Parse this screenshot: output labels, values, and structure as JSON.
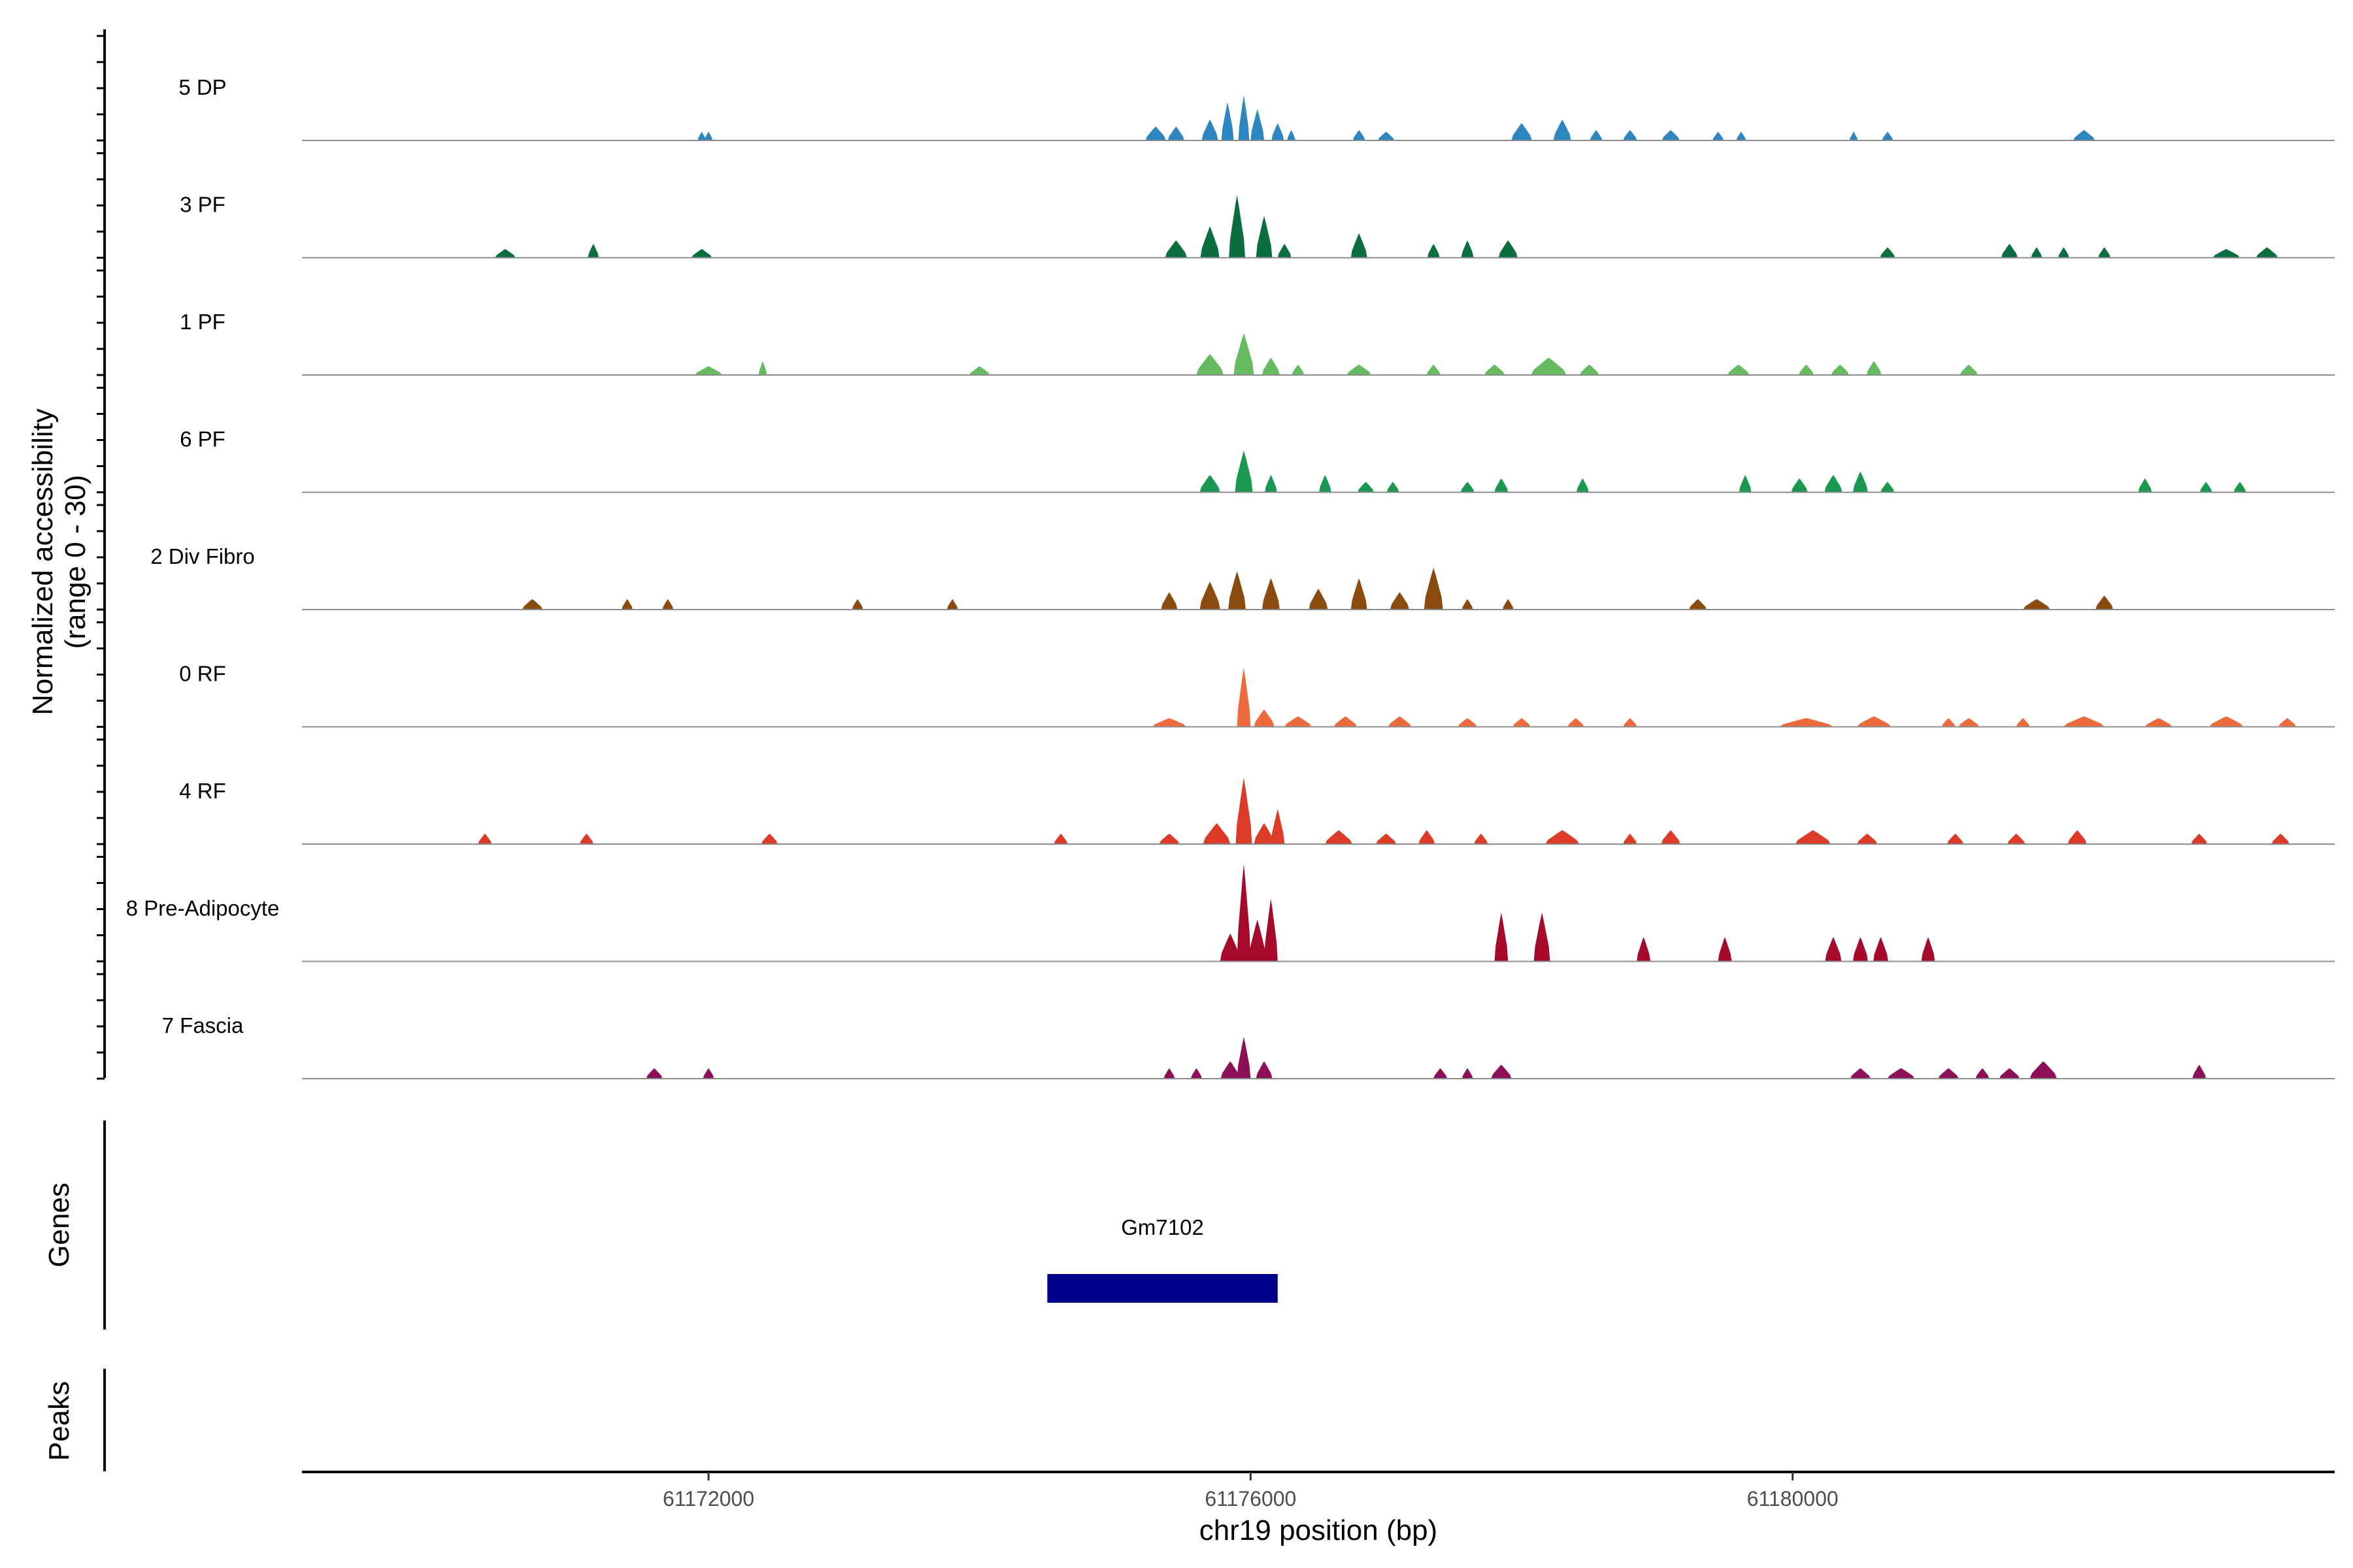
{
  "chart_data": {
    "type": "area",
    "title": "",
    "ylabel_line1": "Normalized accessibility",
    "ylabel_line2": "(range 0 - 30)",
    "xlabel": "chr19 position (bp)",
    "xlim": [
      61169000,
      61184000
    ],
    "ylim": [
      0,
      30
    ],
    "x_ticks": [
      61172000,
      61176000,
      61180000
    ],
    "x_tick_labels": [
      "61172000",
      "61176000",
      "61180000"
    ],
    "series": [
      {
        "name": "5 DP",
        "color": "#2E86C1",
        "peaks": [
          [
            61171950,
            60,
            2.5
          ],
          [
            61172000,
            60,
            2.5
          ],
          [
            61175300,
            150,
            4
          ],
          [
            61175450,
            120,
            4
          ],
          [
            61175700,
            120,
            6
          ],
          [
            61175830,
            90,
            11
          ],
          [
            61175950,
            80,
            13
          ],
          [
            61176050,
            100,
            9
          ],
          [
            61176200,
            90,
            5
          ],
          [
            61176300,
            60,
            3
          ],
          [
            61176800,
            90,
            3
          ],
          [
            61177000,
            120,
            2.5
          ],
          [
            61178000,
            150,
            5
          ],
          [
            61178300,
            130,
            6
          ],
          [
            61178550,
            90,
            3
          ],
          [
            61178800,
            100,
            3
          ],
          [
            61179100,
            130,
            3
          ],
          [
            61179450,
            80,
            2.5
          ],
          [
            61179620,
            70,
            2.5
          ],
          [
            61180450,
            60,
            2.5
          ],
          [
            61180700,
            80,
            2.5
          ],
          [
            61182150,
            160,
            3
          ]
        ]
      },
      {
        "name": "3 PF",
        "color": "#0A6E3F",
        "peaks": [
          [
            61170500,
            150,
            2.5
          ],
          [
            61171150,
            80,
            4
          ],
          [
            61171950,
            150,
            2.5
          ],
          [
            61175450,
            160,
            5
          ],
          [
            61175700,
            140,
            9
          ],
          [
            61175900,
            120,
            18
          ],
          [
            61176100,
            120,
            12
          ],
          [
            61176250,
            100,
            4
          ],
          [
            61176800,
            120,
            7
          ],
          [
            61177350,
            90,
            4
          ],
          [
            61177600,
            90,
            5
          ],
          [
            61177900,
            140,
            5
          ],
          [
            61180700,
            110,
            3
          ],
          [
            61181600,
            120,
            4
          ],
          [
            61181800,
            80,
            3
          ],
          [
            61182000,
            80,
            3
          ],
          [
            61182300,
            90,
            3
          ],
          [
            61183200,
            200,
            2.5
          ],
          [
            61183500,
            160,
            3
          ]
        ]
      },
      {
        "name": "1 PF",
        "color": "#66BB60",
        "peaks": [
          [
            61172000,
            200,
            2.5
          ],
          [
            61172400,
            60,
            4
          ],
          [
            61174000,
            150,
            2.5
          ],
          [
            61175700,
            200,
            6
          ],
          [
            61175950,
            150,
            12
          ],
          [
            61176150,
            130,
            5
          ],
          [
            61176350,
            90,
            3
          ],
          [
            61176800,
            180,
            3
          ],
          [
            61177350,
            100,
            3
          ],
          [
            61177800,
            150,
            3
          ],
          [
            61178200,
            260,
            5
          ],
          [
            61178500,
            140,
            3
          ],
          [
            61179600,
            160,
            3
          ],
          [
            61180100,
            110,
            3
          ],
          [
            61180350,
            130,
            3
          ],
          [
            61180600,
            110,
            4
          ],
          [
            61181300,
            130,
            3
          ]
        ]
      },
      {
        "name": "6 PF",
        "color": "#1A9850",
        "peaks": [
          [
            61175700,
            150,
            5
          ],
          [
            61175950,
            130,
            12
          ],
          [
            61176150,
            90,
            5
          ],
          [
            61176550,
            90,
            5
          ],
          [
            61176850,
            120,
            3
          ],
          [
            61177050,
            90,
            3
          ],
          [
            61177600,
            100,
            3
          ],
          [
            61177850,
            100,
            4
          ],
          [
            61178450,
            90,
            4
          ],
          [
            61179650,
            90,
            5
          ],
          [
            61180050,
            120,
            4
          ],
          [
            61180300,
            130,
            5
          ],
          [
            61180500,
            110,
            6
          ],
          [
            61180700,
            100,
            3
          ],
          [
            61182600,
            100,
            4
          ],
          [
            61183050,
            90,
            3
          ],
          [
            61183300,
            90,
            3
          ]
        ]
      },
      {
        "name": "2 Div Fibro",
        "color": "#8A4B0E",
        "peaks": [
          [
            61170700,
            150,
            3
          ],
          [
            61171400,
            80,
            3
          ],
          [
            61171700,
            80,
            3
          ],
          [
            61173100,
            80,
            3
          ],
          [
            61173800,
            80,
            3
          ],
          [
            61175400,
            120,
            5
          ],
          [
            61175700,
            150,
            8
          ],
          [
            61175900,
            130,
            11
          ],
          [
            61176150,
            130,
            9
          ],
          [
            61176500,
            140,
            6
          ],
          [
            61176800,
            120,
            9
          ],
          [
            61177100,
            140,
            5
          ],
          [
            61177350,
            140,
            12
          ],
          [
            61177600,
            80,
            3
          ],
          [
            61177900,
            80,
            3
          ],
          [
            61179300,
            130,
            3
          ],
          [
            61181800,
            200,
            3
          ],
          [
            61182300,
            130,
            4
          ]
        ]
      },
      {
        "name": "0 RF",
        "color": "#EC6A3C",
        "peaks": [
          [
            61175400,
            250,
            2.5
          ],
          [
            61175950,
            100,
            17
          ],
          [
            61176100,
            150,
            5
          ],
          [
            61176350,
            200,
            3
          ],
          [
            61176700,
            170,
            3
          ],
          [
            61177100,
            170,
            3
          ],
          [
            61177600,
            140,
            2.5
          ],
          [
            61178000,
            130,
            2.5
          ],
          [
            61178400,
            120,
            2.5
          ],
          [
            61178800,
            100,
            2.5
          ],
          [
            61180100,
            400,
            2.5
          ],
          [
            61180600,
            250,
            3
          ],
          [
            61181150,
            100,
            2.5
          ],
          [
            61181300,
            150,
            2.5
          ],
          [
            61181700,
            100,
            2.5
          ],
          [
            61182150,
            300,
            3
          ],
          [
            61182700,
            200,
            2.5
          ],
          [
            61183200,
            250,
            3
          ],
          [
            61183650,
            130,
            2.5
          ]
        ]
      },
      {
        "name": "4 RF",
        "color": "#DC3B27",
        "peaks": [
          [
            61170350,
            100,
            3
          ],
          [
            61171100,
            100,
            3
          ],
          [
            61172450,
            120,
            3
          ],
          [
            61174600,
            100,
            3
          ],
          [
            61175400,
            150,
            3
          ],
          [
            61175750,
            200,
            6
          ],
          [
            61175950,
            120,
            19
          ],
          [
            61176100,
            150,
            6
          ],
          [
            61176200,
            100,
            10
          ],
          [
            61176650,
            200,
            4
          ],
          [
            61177000,
            150,
            3
          ],
          [
            61177300,
            120,
            4
          ],
          [
            61177700,
            100,
            3
          ],
          [
            61178300,
            250,
            4
          ],
          [
            61178800,
            100,
            3
          ],
          [
            61179100,
            140,
            4
          ],
          [
            61180150,
            260,
            4
          ],
          [
            61180550,
            150,
            3
          ],
          [
            61181200,
            120,
            3
          ],
          [
            61181650,
            130,
            3
          ],
          [
            61182100,
            140,
            4
          ],
          [
            61183000,
            120,
            3
          ],
          [
            61183600,
            130,
            3
          ]
        ]
      },
      {
        "name": "8 Pre-Adipocyte",
        "color": "#A50A2B",
        "peaks": [
          [
            61175850,
            150,
            8
          ],
          [
            61175950,
            100,
            28
          ],
          [
            61176050,
            130,
            12
          ],
          [
            61176150,
            100,
            18
          ],
          [
            61177850,
            100,
            14
          ],
          [
            61178150,
            120,
            14
          ],
          [
            61178900,
            100,
            7
          ],
          [
            61179500,
            100,
            7
          ],
          [
            61180300,
            120,
            7
          ],
          [
            61180500,
            110,
            7
          ],
          [
            61180650,
            110,
            7
          ],
          [
            61181000,
            100,
            7
          ]
        ]
      },
      {
        "name": "7 Fascia",
        "color": "#8C0F57",
        "peaks": [
          [
            61171600,
            120,
            3
          ],
          [
            61172000,
            80,
            3
          ],
          [
            61175400,
            80,
            3
          ],
          [
            61175600,
            80,
            3
          ],
          [
            61175850,
            140,
            5
          ],
          [
            61175950,
            100,
            12
          ],
          [
            61176100,
            120,
            5
          ],
          [
            61177400,
            100,
            3
          ],
          [
            61177600,
            80,
            3
          ],
          [
            61177850,
            150,
            4
          ],
          [
            61180500,
            150,
            3
          ],
          [
            61180800,
            200,
            3
          ],
          [
            61181150,
            150,
            3
          ],
          [
            61181400,
            100,
            3
          ],
          [
            61181600,
            150,
            3
          ],
          [
            61181850,
            200,
            5
          ],
          [
            61183000,
            100,
            4
          ]
        ]
      }
    ],
    "genes": [
      {
        "name": "Gm7102",
        "start": 61174500,
        "end": 61176200,
        "color": "#00008B"
      }
    ],
    "panels": {
      "genes_label": "Genes",
      "peaks_label": "Peaks"
    }
  }
}
